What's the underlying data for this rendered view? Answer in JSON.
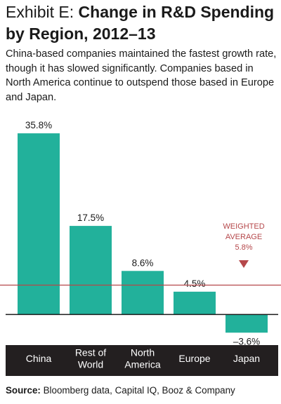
{
  "header": {
    "exhibit_label": "Exhibit E:",
    "title": "Change in R&D Spending by Region, 2012–13",
    "subtitle": "China-based companies maintained the fastest growth rate, though it has slowed significantly. Companies based in North America continue to outspend those based in Europe and Japan."
  },
  "chart_data": {
    "type": "bar",
    "categories": [
      [
        "China"
      ],
      [
        "Rest of",
        "World"
      ],
      [
        "North",
        "America"
      ],
      [
        "Europe"
      ],
      [
        "Japan"
      ]
    ],
    "values": [
      35.8,
      17.5,
      8.6,
      4.5,
      -3.6
    ],
    "value_labels": [
      "35.8%",
      "17.5%",
      "8.6%",
      "4.5%",
      "–3.6%"
    ],
    "ylim": [
      -5.5,
      39
    ],
    "reference_line": {
      "value": 5.8,
      "label_lines": [
        "WEIGHTED",
        "AVERAGE"
      ],
      "value_label": "5.8%"
    },
    "colors": {
      "bar": "#22b19b",
      "reference": "#b5474a",
      "category_band": "#231f20",
      "category_text": "#ffffff"
    }
  },
  "footer": {
    "source_label": "Source:",
    "source_text": "Bloomberg data, Capital IQ, Booz & Company"
  }
}
